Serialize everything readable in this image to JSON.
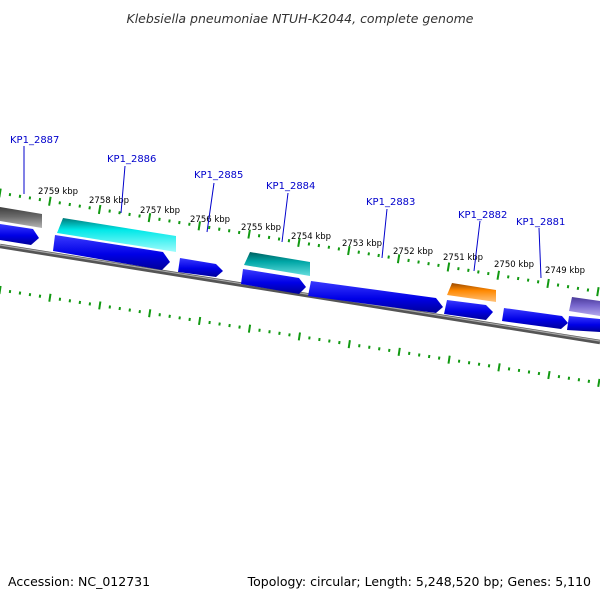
{
  "title": "Klebsiella pneumoniae NTUH-K2044, complete genome",
  "footer": {
    "accession": "Accession: NC_012731",
    "summary": "Topology: circular; Length: 5,248,520 bp; Genes: 5,110"
  },
  "colors": {
    "forward_cds": "#0000ee",
    "reverse_cds_cyan": "#00e5e5",
    "reverse_cds_teal": "#00a8a8",
    "reverse_cds_orange": "#ff8800",
    "reverse_cds_gray": "#666666",
    "reverse_cds_purple": "#7766cc",
    "backbone": "#888888",
    "tick": "#119911",
    "label": "#0000cc"
  },
  "ticks": {
    "labels": [
      "2759 kbp",
      "2758 kbp",
      "2757 kbp",
      "2756 kbp",
      "2755 kbp",
      "2754 kbp",
      "2753 kbp",
      "2752 kbp",
      "2751 kbp",
      "2750 kbp",
      "2749 kbp"
    ]
  },
  "gene_labels": [
    "KP1_2887",
    "KP1_2886",
    "KP1_2885",
    "KP1_2884",
    "KP1_2883",
    "KP1_2882",
    "KP1_2881"
  ]
}
